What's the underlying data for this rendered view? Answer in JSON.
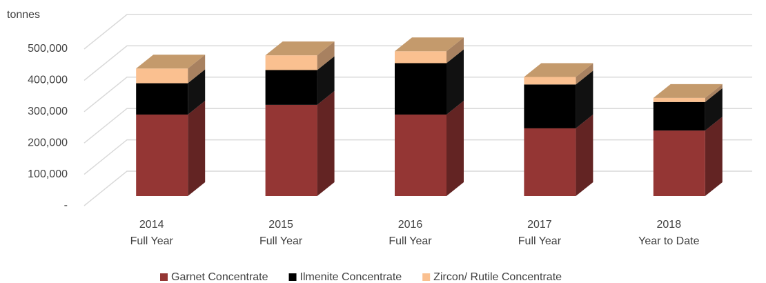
{
  "chart_data": {
    "type": "bar",
    "stacked": true,
    "y_axis_label": "tonnes",
    "categories": [
      [
        "2014",
        "Full Year"
      ],
      [
        "2015",
        "Full Year"
      ],
      [
        "2016",
        "Full Year"
      ],
      [
        "2017",
        "Full Year"
      ],
      [
        "2018",
        "Year to Date"
      ]
    ],
    "series": [
      {
        "name": "Garnet Concentrate",
        "color": "#943634",
        "values": [
          260000,
          291000,
          260000,
          216000,
          209000
        ]
      },
      {
        "name": "Ilmenite Concentrate",
        "color": "#000000",
        "values": [
          100000,
          111000,
          164000,
          140000,
          91000
        ]
      },
      {
        "name": "Zircon/ Rutile Concentrate",
        "color": "#fac090",
        "values": [
          47000,
          47000,
          38000,
          24000,
          13000
        ]
      }
    ],
    "ylim": [
      0,
      500000
    ],
    "yticks": [
      {
        "value": 0,
        "label": "-"
      },
      {
        "value": 100000,
        "label": "100,000"
      },
      {
        "value": 200000,
        "label": "200,000"
      },
      {
        "value": 300000,
        "label": "300,000"
      },
      {
        "value": 400000,
        "label": "400,000"
      },
      {
        "value": 500000,
        "label": "500,000"
      }
    ],
    "grid": true,
    "legend": "bottom"
  }
}
